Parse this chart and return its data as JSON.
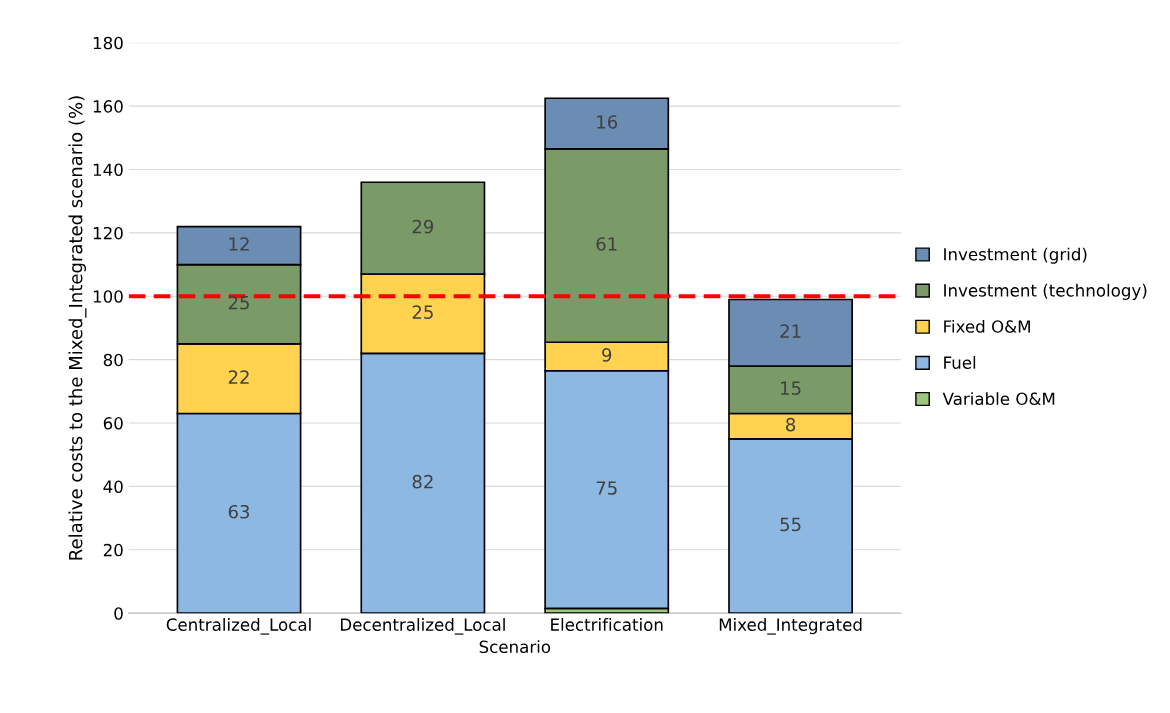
{
  "chart_data": {
    "type": "bar",
    "stacked": true,
    "xlabel": "Scenario",
    "ylabel": "Relative costs to the Mixed_Integrated scenario (%)",
    "categories": [
      "Centralized_Local",
      "Decentralized_Local",
      "Electrification",
      "Mixed_Integrated"
    ],
    "series": [
      {
        "name": "Variable O&M",
        "color": "#9dc77f",
        "values": [
          null,
          null,
          1.5,
          null
        ],
        "value_labels": [
          null,
          null,
          null,
          null
        ]
      },
      {
        "name": "Fuel",
        "color": "#8db8e2",
        "values": [
          63,
          82,
          75,
          55
        ],
        "value_labels": [
          "63",
          "82",
          "75",
          "55"
        ]
      },
      {
        "name": "Fixed O&M",
        "color": "#ffd34f",
        "values": [
          22,
          25,
          9,
          8
        ],
        "value_labels": [
          "22",
          "25",
          "9",
          "8"
        ]
      },
      {
        "name": "Investment (technology)",
        "color": "#7a9a67",
        "values": [
          25,
          29,
          61,
          15
        ],
        "value_labels": [
          "25",
          "29",
          "61",
          "15"
        ]
      },
      {
        "name": "Investment (grid)",
        "color": "#6b8cb3",
        "values": [
          12,
          null,
          16,
          21
        ],
        "value_labels": [
          "12",
          null,
          "16",
          "21"
        ]
      }
    ],
    "ylim": [
      0,
      180
    ],
    "yticks": [
      0,
      20,
      40,
      60,
      80,
      100,
      120,
      140,
      160,
      180
    ],
    "grid": "y",
    "legend": "right",
    "ref_lines": [
      {
        "axis": "y",
        "value": 100,
        "color": "#ff0000",
        "line_style": "dashed"
      }
    ]
  }
}
